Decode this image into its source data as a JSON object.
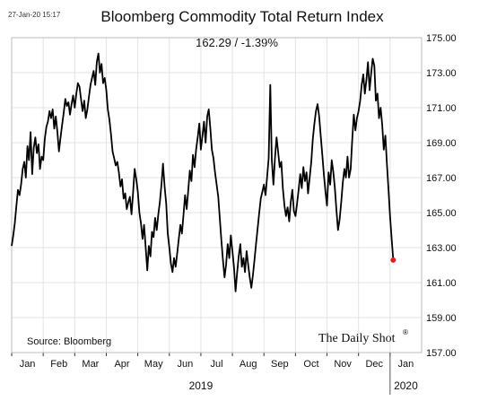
{
  "header": {
    "timestamp": "27-Jan-20 15:17",
    "title": "Bloomberg Commodity Total Return Index",
    "subtitle": "162.29  /  -1.39%"
  },
  "footer": {
    "source": "Source: Bloomberg",
    "brand": "The Daily Shot",
    "brand_mark": "®"
  },
  "colors": {
    "line": "#000000",
    "last_point": "#e02020"
  },
  "chart_data": {
    "type": "line",
    "title": "Bloomberg Commodity Total Return Index",
    "ylim": [
      157,
      175
    ],
    "yticks": [
      "157.00",
      "159.00",
      "161.00",
      "163.00",
      "165.00",
      "167.00",
      "169.00",
      "171.00",
      "173.00",
      "175.00"
    ],
    "ytick_values": [
      157,
      159,
      161,
      163,
      165,
      167,
      169,
      171,
      173,
      175
    ],
    "y_axis_side": "right",
    "xlim": [
      0,
      13
    ],
    "month_labels": [
      "Jan",
      "Feb",
      "Mar",
      "Apr",
      "May",
      "Jun",
      "Jul",
      "Aug",
      "Sep",
      "Oct",
      "Nov",
      "Dec",
      "Jan"
    ],
    "year_labels": [
      {
        "label": "2019",
        "x": 6.0
      },
      {
        "label": "2020",
        "x": 12.5
      }
    ],
    "grid": true,
    "series": [
      {
        "values": [
          [
            0.0,
            163.1
          ],
          [
            0.05,
            163.7
          ],
          [
            0.1,
            164.4
          ],
          [
            0.15,
            165.4
          ],
          [
            0.2,
            166.3
          ],
          [
            0.25,
            166.0
          ],
          [
            0.3,
            166.6
          ],
          [
            0.35,
            167.5
          ],
          [
            0.4,
            167.9
          ],
          [
            0.45,
            167.0
          ],
          [
            0.5,
            168.8
          ],
          [
            0.55,
            168.0
          ],
          [
            0.6,
            169.6
          ],
          [
            0.65,
            167.2
          ],
          [
            0.7,
            168.7
          ],
          [
            0.75,
            169.3
          ],
          [
            0.8,
            168.4
          ],
          [
            0.85,
            168.9
          ],
          [
            0.9,
            167.5
          ],
          [
            0.95,
            168.2
          ],
          [
            1.0,
            168.0
          ],
          [
            1.05,
            169.2
          ],
          [
            1.1,
            169.9
          ],
          [
            1.15,
            170.2
          ],
          [
            1.2,
            170.8
          ],
          [
            1.25,
            170.4
          ],
          [
            1.3,
            170.9
          ],
          [
            1.35,
            169.8
          ],
          [
            1.4,
            170.5
          ],
          [
            1.45,
            169.6
          ],
          [
            1.5,
            168.5
          ],
          [
            1.55,
            169.3
          ],
          [
            1.6,
            170.0
          ],
          [
            1.65,
            170.7
          ],
          [
            1.7,
            171.5
          ],
          [
            1.75,
            171.1
          ],
          [
            1.8,
            171.3
          ],
          [
            1.85,
            170.6
          ],
          [
            1.9,
            171.2
          ],
          [
            1.95,
            171.7
          ],
          [
            2.0,
            171.0
          ],
          [
            2.05,
            171.8
          ],
          [
            2.1,
            172.4
          ],
          [
            2.15,
            172.2
          ],
          [
            2.2,
            171.5
          ],
          [
            2.25,
            170.8
          ],
          [
            2.3,
            171.4
          ],
          [
            2.35,
            170.4
          ],
          [
            2.4,
            170.9
          ],
          [
            2.45,
            171.6
          ],
          [
            2.5,
            172.3
          ],
          [
            2.55,
            172.7
          ],
          [
            2.6,
            173.1
          ],
          [
            2.65,
            172.3
          ],
          [
            2.7,
            173.6
          ],
          [
            2.75,
            174.1
          ],
          [
            2.8,
            173.0
          ],
          [
            2.85,
            173.5
          ],
          [
            2.9,
            172.4
          ],
          [
            2.95,
            172.7
          ],
          [
            3.0,
            172.0
          ],
          [
            3.05,
            170.9
          ],
          [
            3.1,
            170.3
          ],
          [
            3.15,
            169.5
          ],
          [
            3.2,
            168.5
          ],
          [
            3.25,
            168.1
          ],
          [
            3.3,
            167.7
          ],
          [
            3.35,
            167.9
          ],
          [
            3.4,
            167.3
          ],
          [
            3.45,
            166.5
          ],
          [
            3.5,
            166.9
          ],
          [
            3.55,
            165.8
          ],
          [
            3.6,
            166.1
          ],
          [
            3.65,
            165.2
          ],
          [
            3.7,
            165.6
          ],
          [
            3.75,
            165.9
          ],
          [
            3.8,
            164.9
          ],
          [
            3.85,
            166.1
          ],
          [
            3.9,
            167.5
          ],
          [
            3.95,
            166.9
          ],
          [
            4.0,
            166.2
          ],
          [
            4.05,
            165.0
          ],
          [
            4.1,
            164.4
          ],
          [
            4.15,
            163.5
          ],
          [
            4.2,
            164.3
          ],
          [
            4.25,
            163.0
          ],
          [
            4.3,
            161.7
          ],
          [
            4.35,
            163.1
          ],
          [
            4.4,
            162.5
          ],
          [
            4.45,
            163.9
          ],
          [
            4.5,
            163.6
          ],
          [
            4.55,
            164.7
          ],
          [
            4.6,
            164.0
          ],
          [
            4.65,
            164.9
          ],
          [
            4.7,
            165.6
          ],
          [
            4.75,
            166.6
          ],
          [
            4.8,
            167.8
          ],
          [
            4.85,
            166.5
          ],
          [
            4.9,
            165.5
          ],
          [
            4.95,
            163.8
          ],
          [
            5.0,
            163.0
          ],
          [
            5.05,
            162.1
          ],
          [
            5.1,
            161.6
          ],
          [
            5.15,
            162.4
          ],
          [
            5.2,
            161.9
          ],
          [
            5.25,
            162.7
          ],
          [
            5.3,
            163.5
          ],
          [
            5.35,
            164.3
          ],
          [
            5.4,
            163.8
          ],
          [
            5.45,
            164.9
          ],
          [
            5.5,
            166.0
          ],
          [
            5.55,
            165.2
          ],
          [
            5.6,
            166.3
          ],
          [
            5.65,
            167.4
          ],
          [
            5.7,
            166.8
          ],
          [
            5.75,
            168.3
          ],
          [
            5.8,
            167.6
          ],
          [
            5.85,
            168.6
          ],
          [
            5.9,
            169.3
          ],
          [
            5.95,
            170.1
          ],
          [
            6.0,
            168.6
          ],
          [
            6.05,
            169.4
          ],
          [
            6.1,
            170.2
          ],
          [
            6.15,
            169.0
          ],
          [
            6.2,
            170.5
          ],
          [
            6.25,
            170.9
          ],
          [
            6.3,
            169.8
          ],
          [
            6.35,
            168.6
          ],
          [
            6.4,
            168.1
          ],
          [
            6.45,
            167.3
          ],
          [
            6.5,
            166.6
          ],
          [
            6.55,
            165.9
          ],
          [
            6.6,
            164.7
          ],
          [
            6.65,
            163.4
          ],
          [
            6.7,
            162.3
          ],
          [
            6.75,
            161.3
          ],
          [
            6.8,
            162.0
          ],
          [
            6.85,
            163.2
          ],
          [
            6.9,
            162.4
          ],
          [
            6.95,
            163.7
          ],
          [
            7.0,
            162.8
          ],
          [
            7.05,
            161.9
          ],
          [
            7.1,
            160.5
          ],
          [
            7.15,
            161.6
          ],
          [
            7.2,
            162.5
          ],
          [
            7.25,
            163.2
          ],
          [
            7.3,
            161.9
          ],
          [
            7.35,
            162.4
          ],
          [
            7.4,
            161.6
          ],
          [
            7.45,
            162.8
          ],
          [
            7.5,
            162.0
          ],
          [
            7.55,
            161.3
          ],
          [
            7.6,
            160.7
          ],
          [
            7.65,
            161.4
          ],
          [
            7.7,
            162.3
          ],
          [
            7.75,
            163.2
          ],
          [
            7.8,
            164.1
          ],
          [
            7.85,
            165.0
          ],
          [
            7.9,
            165.8
          ],
          [
            7.95,
            166.2
          ],
          [
            8.0,
            166.6
          ],
          [
            8.05,
            166.0
          ],
          [
            8.1,
            167.0
          ],
          [
            8.15,
            168.1
          ],
          [
            8.2,
            172.3
          ],
          [
            8.25,
            168.0
          ],
          [
            8.3,
            166.6
          ],
          [
            8.35,
            168.1
          ],
          [
            8.4,
            169.3
          ],
          [
            8.45,
            168.5
          ],
          [
            8.5,
            167.6
          ],
          [
            8.55,
            167.9
          ],
          [
            8.6,
            166.4
          ],
          [
            8.65,
            165.4
          ],
          [
            8.7,
            164.8
          ],
          [
            8.75,
            165.3
          ],
          [
            8.8,
            164.5
          ],
          [
            8.85,
            165.6
          ],
          [
            8.9,
            166.3
          ],
          [
            8.95,
            165.1
          ],
          [
            9.0,
            164.8
          ],
          [
            9.05,
            165.5
          ],
          [
            9.1,
            166.3
          ],
          [
            9.15,
            167.2
          ],
          [
            9.2,
            166.4
          ],
          [
            9.25,
            167.6
          ],
          [
            9.3,
            166.8
          ],
          [
            9.35,
            167.3
          ],
          [
            9.4,
            166.1
          ],
          [
            9.45,
            167.0
          ],
          [
            9.5,
            167.9
          ],
          [
            9.55,
            169.2
          ],
          [
            9.6,
            170.1
          ],
          [
            9.65,
            170.8
          ],
          [
            9.7,
            171.2
          ],
          [
            9.75,
            170.5
          ],
          [
            9.8,
            169.4
          ],
          [
            9.85,
            168.3
          ],
          [
            9.9,
            167.2
          ],
          [
            9.95,
            166.2
          ],
          [
            10.0,
            165.4
          ],
          [
            10.05,
            167.3
          ],
          [
            10.1,
            166.6
          ],
          [
            10.15,
            168.0
          ],
          [
            10.2,
            167.3
          ],
          [
            10.25,
            166.4
          ],
          [
            10.3,
            165.1
          ],
          [
            10.35,
            164.0
          ],
          [
            10.4,
            164.6
          ],
          [
            10.45,
            165.6
          ],
          [
            10.5,
            166.7
          ],
          [
            10.55,
            167.5
          ],
          [
            10.6,
            167.0
          ],
          [
            10.65,
            168.2
          ],
          [
            10.7,
            167.0
          ],
          [
            10.75,
            167.5
          ],
          [
            10.8,
            169.2
          ],
          [
            10.85,
            170.6
          ],
          [
            10.9,
            169.7
          ],
          [
            10.95,
            170.4
          ],
          [
            11.0,
            170.8
          ],
          [
            11.05,
            171.4
          ],
          [
            11.1,
            172.3
          ],
          [
            11.15,
            172.9
          ],
          [
            11.2,
            171.8
          ],
          [
            11.25,
            172.6
          ],
          [
            11.3,
            173.6
          ],
          [
            11.35,
            172.0
          ],
          [
            11.4,
            173.0
          ],
          [
            11.45,
            173.8
          ],
          [
            11.5,
            173.4
          ],
          [
            11.55,
            171.4
          ],
          [
            11.6,
            171.8
          ],
          [
            11.65,
            170.4
          ],
          [
            11.7,
            171.0
          ],
          [
            11.75,
            170.0
          ],
          [
            11.8,
            168.6
          ],
          [
            11.85,
            169.4
          ],
          [
            11.9,
            167.8
          ],
          [
            11.95,
            166.3
          ],
          [
            12.0,
            164.8
          ],
          [
            12.05,
            163.5
          ],
          [
            12.1,
            162.29
          ]
        ]
      }
    ],
    "last_point": {
      "x": 12.1,
      "y": 162.29
    }
  }
}
